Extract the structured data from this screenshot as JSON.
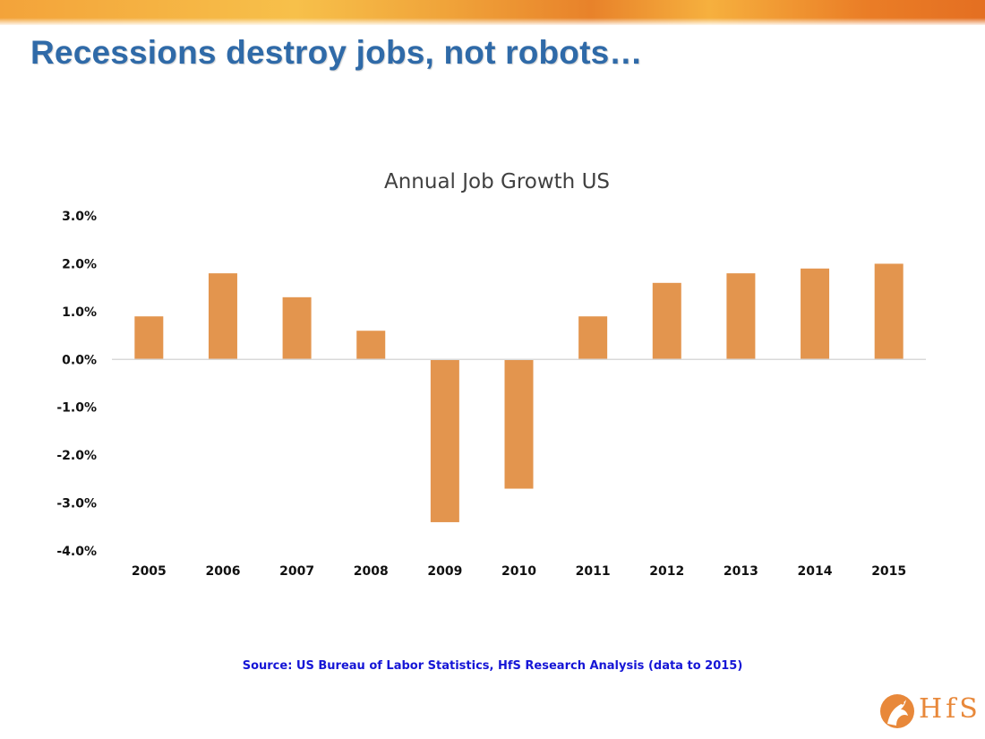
{
  "slide": {
    "title": "Recessions destroy jobs, not robots…",
    "source": "Source: US Bureau of Labor Statistics, HfS Research Analysis (data to 2015)",
    "logo_text": "HfS"
  },
  "colors": {
    "title": "#2f6aa8",
    "bar": "#e3954e",
    "source": "#1515d6",
    "logo": "#e8883a"
  },
  "chart_data": {
    "type": "bar",
    "title": "Annual Job Growth US",
    "categories": [
      "2005",
      "2006",
      "2007",
      "2008",
      "2009",
      "2010",
      "2011",
      "2012",
      "2013",
      "2014",
      "2015"
    ],
    "series": [
      {
        "values": [
          0.9,
          1.8,
          1.3,
          0.6,
          -3.4,
          -2.7,
          0.9,
          1.6,
          1.8,
          1.9,
          2.0
        ]
      }
    ],
    "unit": "%",
    "ylim": [
      -4.0,
      3.0
    ],
    "yticks": [
      3.0,
      2.0,
      1.0,
      0.0,
      -1.0,
      -2.0,
      -3.0,
      -4.0
    ],
    "ytick_labels": [
      "3.0%",
      "2.0%",
      "1.0%",
      "0.0%",
      "-1.0%",
      "-2.0%",
      "-3.0%",
      "-4.0%"
    ],
    "grid": false,
    "legend": "none"
  }
}
